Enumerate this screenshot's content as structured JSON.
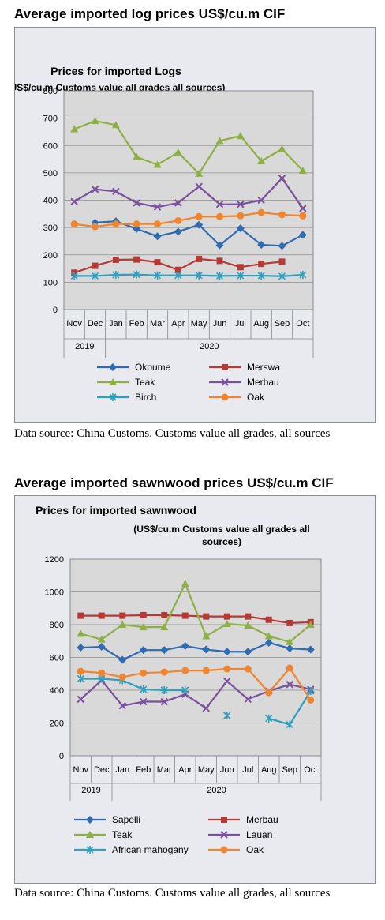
{
  "section1": {
    "heading": "Average imported log prices US$/cu.m CIF",
    "source": "Data source: China Customs. Customs value all grades, all sources"
  },
  "section2": {
    "heading": "Average imported sawnwood prices US$/cu.m CIF",
    "source": "Data source: China Customs. Customs value all grades, all sources"
  },
  "chart_data": [
    {
      "type": "line",
      "title": "Prices for imported Logs",
      "subtitle": "(US$/cu.m Customs value all grades all sources)",
      "categories": [
        "Nov",
        "Dec",
        "Jan",
        "Feb",
        "Mar",
        "Apr",
        "May",
        "Jun",
        "Jul",
        "Aug",
        "Sep",
        "Oct"
      ],
      "year_groups": [
        {
          "label": "2019",
          "span": 2
        },
        {
          "label": "2020",
          "span": 10
        }
      ],
      "ylim": [
        0,
        800
      ],
      "yticks": [
        0,
        100,
        200,
        300,
        400,
        500,
        600,
        700,
        800
      ],
      "grid": true,
      "legend": "bottom",
      "series": [
        {
          "name": "Okoume",
          "color": "#2e6bb2",
          "marker": "diamond",
          "values": [
            null,
            318,
            323,
            295,
            268,
            285,
            310,
            235,
            297,
            237,
            233,
            273
          ]
        },
        {
          "name": "Merswa",
          "color": "#b53a36",
          "marker": "square",
          "values": [
            135,
            160,
            182,
            183,
            173,
            145,
            185,
            178,
            155,
            167,
            175,
            null
          ]
        },
        {
          "name": "Teak",
          "color": "#8db043",
          "marker": "triangle",
          "values": [
            660,
            690,
            675,
            558,
            530,
            575,
            497,
            617,
            635,
            543,
            587,
            508
          ]
        },
        {
          "name": "Merbau",
          "color": "#7a4f9c",
          "marker": "x",
          "values": [
            395,
            440,
            432,
            390,
            375,
            390,
            450,
            385,
            385,
            400,
            480,
            370
          ]
        },
        {
          "name": "Birch",
          "color": "#2e9fbd",
          "marker": "star",
          "values": [
            123,
            123,
            127,
            128,
            125,
            125,
            125,
            123,
            124,
            124,
            122,
            127
          ]
        },
        {
          "name": "Oak",
          "color": "#f0852e",
          "marker": "circle",
          "values": [
            313,
            303,
            313,
            313,
            313,
            325,
            340,
            340,
            343,
            355,
            347,
            343
          ]
        }
      ]
    },
    {
      "type": "line",
      "title": "Prices for imported sawnwood",
      "subtitle": "(US$/cu.m Customs value all grades all sources)",
      "categories": [
        "Nov",
        "Dec",
        "Jan",
        "Feb",
        "Mar",
        "Apr",
        "May",
        "Jun",
        "Jul",
        "Aug",
        "Sep",
        "Oct"
      ],
      "year_groups": [
        {
          "label": "2019",
          "span": 2
        },
        {
          "label": "2020",
          "span": 10
        }
      ],
      "ylim": [
        0,
        1200
      ],
      "yticks": [
        0,
        200,
        400,
        600,
        800,
        1000,
        1200
      ],
      "grid": true,
      "legend": "bottom",
      "series": [
        {
          "name": "Sapelli",
          "color": "#2e6bb2",
          "marker": "diamond",
          "values": [
            660,
            665,
            585,
            645,
            645,
            670,
            648,
            635,
            635,
            690,
            655,
            648
          ]
        },
        {
          "name": "Merbau",
          "color": "#b53a36",
          "marker": "square",
          "values": [
            855,
            855,
            855,
            858,
            858,
            855,
            850,
            850,
            850,
            830,
            810,
            815
          ]
        },
        {
          "name": "Teak",
          "color": "#8db043",
          "marker": "triangle",
          "values": [
            745,
            710,
            800,
            785,
            785,
            1050,
            730,
            805,
            795,
            730,
            695,
            800
          ]
        },
        {
          "name": "Lauan",
          "color": "#7a4f9c",
          "marker": "x",
          "values": [
            345,
            460,
            305,
            330,
            330,
            375,
            290,
            455,
            345,
            395,
            435,
            405
          ]
        },
        {
          "name": "African mahogany",
          "color": "#2e9fbd",
          "marker": "star",
          "values": [
            470,
            470,
            460,
            405,
            400,
            400,
            null,
            245,
            null,
            228,
            190,
            395
          ]
        },
        {
          "name": "Oak",
          "color": "#f0852e",
          "marker": "circle",
          "values": [
            515,
            505,
            480,
            505,
            510,
            520,
            520,
            530,
            530,
            385,
            535,
            340
          ]
        }
      ]
    }
  ]
}
